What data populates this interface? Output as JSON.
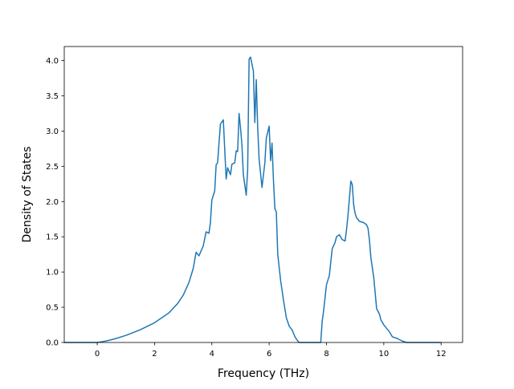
{
  "chart_data": {
    "type": "line",
    "title": "",
    "xlabel": "Frequency (THz)",
    "ylabel": "Density of States",
    "xlim": [
      -1.15,
      12.75
    ],
    "ylim": [
      0.0,
      4.2
    ],
    "xticks": [
      0,
      2,
      4,
      6,
      8,
      10,
      12
    ],
    "yticks": [
      0.0,
      0.5,
      1.0,
      1.5,
      2.0,
      2.5,
      3.0,
      3.5,
      4.0
    ],
    "xtick_labels": [
      "0",
      "2",
      "4",
      "6",
      "8",
      "10",
      "12"
    ],
    "ytick_labels": [
      "0.0",
      "0.5",
      "1.0",
      "1.5",
      "2.0",
      "2.5",
      "3.0",
      "3.5",
      "4.0"
    ],
    "grid": false,
    "line_color": "#1f77b4",
    "series": [
      {
        "x": [
          -1.15,
          -0.5,
          0.0,
          0.3,
          0.6,
          1.0,
          1.5,
          2.0,
          2.5,
          2.8,
          3.0,
          3.2,
          3.35,
          3.45,
          3.55,
          3.7,
          3.8,
          3.9,
          3.95,
          4.0,
          4.1,
          4.15,
          4.2,
          4.3,
          4.4,
          4.5,
          4.55,
          4.65,
          4.7,
          4.8,
          4.85,
          4.9,
          4.95,
          5.0,
          5.05,
          5.1,
          5.2,
          5.25,
          5.3,
          5.35,
          5.45,
          5.5,
          5.55,
          5.6,
          5.65,
          5.75,
          5.85,
          5.9,
          6.0,
          6.05,
          6.1,
          6.15,
          6.2,
          6.25,
          6.3,
          6.4,
          6.5,
          6.6,
          6.7,
          6.8,
          6.9,
          7.0,
          7.05,
          7.1,
          7.5,
          7.8,
          7.85,
          7.9,
          8.0,
          8.1,
          8.2,
          8.3,
          8.35,
          8.45,
          8.55,
          8.65,
          8.7,
          8.75,
          8.85,
          8.9,
          8.95,
          9.0,
          9.05,
          9.15,
          9.3,
          9.4,
          9.45,
          9.5,
          9.55,
          9.65,
          9.75,
          9.85,
          9.9,
          10.0,
          10.1,
          10.2,
          10.3,
          10.45,
          10.55,
          10.65,
          10.8,
          10.9,
          11.0,
          12.0
        ],
        "y": [
          0.0,
          0.0,
          0.0,
          0.02,
          0.05,
          0.1,
          0.18,
          0.28,
          0.42,
          0.55,
          0.67,
          0.85,
          1.05,
          1.28,
          1.23,
          1.37,
          1.57,
          1.55,
          1.7,
          2.02,
          2.15,
          2.52,
          2.55,
          3.1,
          3.16,
          2.32,
          2.48,
          2.38,
          2.53,
          2.55,
          2.72,
          2.71,
          3.25,
          3.05,
          2.8,
          2.38,
          2.09,
          2.45,
          4.02,
          4.05,
          3.85,
          3.12,
          3.73,
          3.05,
          2.6,
          2.2,
          2.55,
          2.9,
          3.07,
          2.58,
          2.83,
          2.3,
          1.9,
          1.85,
          1.25,
          0.88,
          0.6,
          0.35,
          0.23,
          0.18,
          0.08,
          0.02,
          0.0,
          0.0,
          0.0,
          0.0,
          0.3,
          0.45,
          0.82,
          0.95,
          1.33,
          1.42,
          1.5,
          1.53,
          1.46,
          1.44,
          1.6,
          1.8,
          2.29,
          2.24,
          1.95,
          1.83,
          1.77,
          1.72,
          1.7,
          1.67,
          1.62,
          1.45,
          1.2,
          0.92,
          0.48,
          0.4,
          0.32,
          0.25,
          0.2,
          0.15,
          0.08,
          0.06,
          0.04,
          0.02,
          0.0,
          0.0,
          0.0,
          0.0
        ]
      }
    ]
  }
}
